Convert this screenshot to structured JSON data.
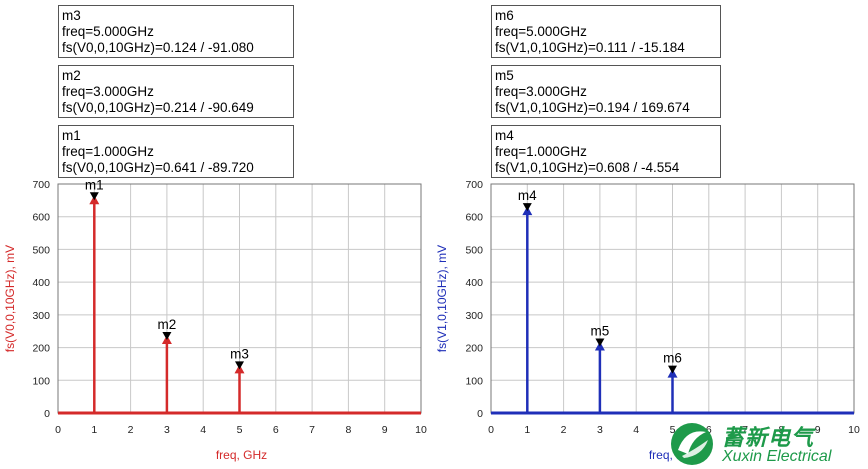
{
  "chart_data": [
    {
      "type": "bar",
      "title": "",
      "color": "#d42a2a",
      "xlabel": "freq, GHz",
      "ylabel": "fs(V0,0,10GHz), mV",
      "xlim": [
        0,
        10
      ],
      "ylim": [
        0,
        700
      ],
      "xticks": [
        "0",
        "1",
        "2",
        "3",
        "4",
        "5",
        "6",
        "7",
        "8",
        "9",
        "10"
      ],
      "yticks": [
        "0",
        "100",
        "200",
        "300",
        "400",
        "500",
        "600",
        "700"
      ],
      "grid": true,
      "x": [
        1,
        3,
        5
      ],
      "values": [
        641,
        214,
        124
      ],
      "markers": [
        {
          "name": "m1",
          "x": 1,
          "y": 641,
          "text": [
            "m1",
            "freq=1.000GHz",
            "fs(V0,0,10GHz)=0.641 / -89.720"
          ]
        },
        {
          "name": "m2",
          "x": 3,
          "y": 214,
          "text": [
            "m2",
            "freq=3.000GHz",
            "fs(V0,0,10GHz)=0.214 / -90.649"
          ]
        },
        {
          "name": "m3",
          "x": 5,
          "y": 124,
          "text": [
            "m3",
            "freq=5.000GHz",
            "fs(V0,0,10GHz)=0.124 / -91.080"
          ]
        }
      ]
    },
    {
      "type": "bar",
      "title": "",
      "color": "#1f2fb8",
      "xlabel": "freq, GHz",
      "ylabel": "fs(V1,0,10GHz), mV",
      "xlim": [
        0,
        10
      ],
      "ylim": [
        0,
        700
      ],
      "xticks": [
        "0",
        "1",
        "2",
        "3",
        "4",
        "5",
        "6",
        "7",
        "8",
        "9",
        "10"
      ],
      "yticks": [
        "0",
        "100",
        "200",
        "300",
        "400",
        "500",
        "600",
        "700"
      ],
      "grid": true,
      "x": [
        1,
        3,
        5
      ],
      "values": [
        608,
        194,
        111
      ],
      "markers": [
        {
          "name": "m4",
          "x": 1,
          "y": 608,
          "text": [
            "m4",
            "freq=1.000GHz",
            "fs(V1,0,10GHz)=0.608 / -4.554"
          ]
        },
        {
          "name": "m5",
          "x": 3,
          "y": 194,
          "text": [
            "m5",
            "freq=3.000GHz",
            "fs(V1,0,10GHz)=0.194 / 169.674"
          ]
        },
        {
          "name": "m6",
          "x": 5,
          "y": 111,
          "text": [
            "m6",
            "freq=5.000GHz",
            "fs(V1,0,10GHz)=0.111 / -15.184"
          ]
        }
      ]
    }
  ],
  "logo": {
    "cn": "蓄新电气",
    "en": "Xuxin Electrical",
    "color": "#1e9a4a"
  }
}
